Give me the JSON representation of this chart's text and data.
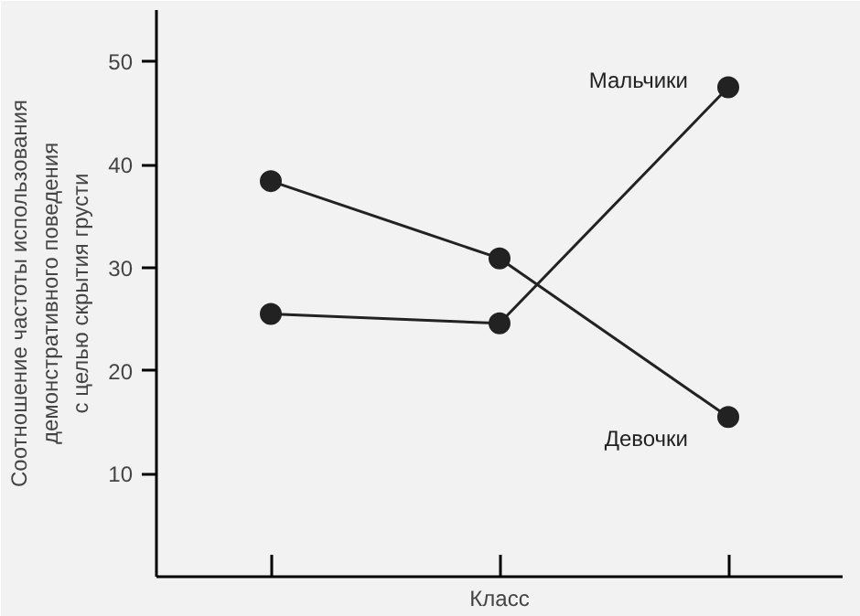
{
  "chart_data": {
    "type": "line",
    "xlabel": "Класс",
    "ylabel": "Соотношение частоты использования\nдемонстративного поведения\nс целью скрытия грусти",
    "categories": [
      null,
      null,
      null
    ],
    "ylim": [
      0,
      55
    ],
    "yticks": [
      10,
      20,
      30,
      40,
      50
    ],
    "marker": "circle",
    "line_style": "solid",
    "grid": false,
    "legend": false,
    "series": [
      {
        "name": "Мальчики",
        "color": "#222222",
        "values": [
          25.5,
          24.6,
          47.5
        ]
      },
      {
        "name": "Девочки",
        "color": "#222222",
        "values": [
          38.4,
          30.9,
          15.5
        ]
      }
    ]
  }
}
